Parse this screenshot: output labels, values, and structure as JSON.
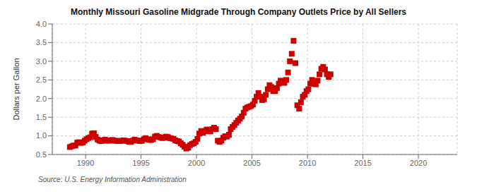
{
  "chart_data": {
    "type": "scatter",
    "title": "Monthly Missouri Gasoline Midgrade Through Company Outlets Price by All Sellers",
    "ylabel": "Dollars per Gallon",
    "annotations": [
      "Source: U.S. Energy Information Administration"
    ],
    "color": "#cc0000",
    "marker": "square",
    "grid": true,
    "xlim": [
      1987.0,
      2023.5
    ],
    "xticks": [
      1990,
      1995,
      2000,
      2005,
      2010,
      2015,
      2020
    ],
    "ylim": [
      0.5,
      4.0
    ],
    "yticks": [
      0.5,
      {
        "value": 1.0,
        "label": "1.0"
      },
      1.5,
      {
        "value": 2.0,
        "label": "2.0"
      },
      2.5,
      {
        "value": 3.0,
        "label": "3.0"
      },
      3.5,
      {
        "value": 4.0,
        "label": "4.0"
      }
    ],
    "x": [
      1988.583,
      1988.75,
      1988.917,
      1989.083,
      1989.25,
      1989.417,
      1989.583,
      1989.75,
      1989.917,
      1990.083,
      1990.25,
      1990.417,
      1990.583,
      1990.75,
      1990.917,
      1991.083,
      1991.25,
      1991.417,
      1991.583,
      1991.75,
      1991.917,
      1992.083,
      1992.25,
      1992.417,
      1992.583,
      1992.75,
      1992.917,
      1993.083,
      1993.25,
      1993.417,
      1993.583,
      1993.75,
      1993.917,
      1994.083,
      1994.25,
      1994.417,
      1994.583,
      1994.75,
      1994.917,
      1995.083,
      1995.25,
      1995.417,
      1995.583,
      1995.75,
      1995.917,
      1996.083,
      1996.25,
      1996.417,
      1996.583,
      1996.75,
      1996.917,
      1997.083,
      1997.25,
      1997.417,
      1997.583,
      1997.75,
      1997.917,
      1998.083,
      1998.25,
      1998.417,
      1998.583,
      1998.75,
      1998.917,
      1999.083,
      1999.25,
      1999.417,
      1999.583,
      1999.75,
      1999.917,
      2000.083,
      2000.25,
      2000.417,
      2000.583,
      2000.75,
      2000.917,
      2001.083,
      2001.25,
      2001.417,
      2001.583,
      2001.75,
      2001.917,
      2002.083,
      2002.25,
      2002.417,
      2002.583,
      2002.75,
      2002.917,
      2003.083,
      2003.25,
      2003.417,
      2003.583,
      2003.75,
      2003.917,
      2004.083,
      2004.25,
      2004.417,
      2004.583,
      2004.75,
      2004.917,
      2005.083,
      2005.25,
      2005.417,
      2005.583,
      2005.75,
      2005.917,
      2006.083,
      2006.25,
      2006.417,
      2006.583,
      2006.75,
      2006.917,
      2007.083,
      2007.25,
      2007.417,
      2007.583,
      2007.75,
      2007.917,
      2008.083,
      2008.25,
      2008.417,
      2008.583,
      2008.75,
      2008.917,
      2009.083,
      2009.25,
      2009.417,
      2009.583,
      2009.75,
      2009.917,
      2010.083,
      2010.25,
      2010.417,
      2010.583,
      2010.75,
      2010.917,
      2011.083,
      2011.25,
      2011.417,
      2011.583,
      2011.75,
      2011.917,
      2012.083
    ],
    "values": [
      0.7,
      0.72,
      0.74,
      0.74,
      0.82,
      0.83,
      0.81,
      0.82,
      0.87,
      0.91,
      0.94,
      0.96,
      1.06,
      1.07,
      0.97,
      0.9,
      0.87,
      0.86,
      0.88,
      0.9,
      0.87,
      0.87,
      0.88,
      0.89,
      0.87,
      0.87,
      0.86,
      0.86,
      0.87,
      0.88,
      0.87,
      0.86,
      0.84,
      0.84,
      0.87,
      0.9,
      0.88,
      0.87,
      0.86,
      0.87,
      0.91,
      0.94,
      0.91,
      0.89,
      0.89,
      0.91,
      0.98,
      1.0,
      0.97,
      0.96,
      0.94,
      0.95,
      0.98,
      0.97,
      0.94,
      0.93,
      0.92,
      0.88,
      0.86,
      0.85,
      0.8,
      0.76,
      0.71,
      0.66,
      0.68,
      0.75,
      0.78,
      0.8,
      0.84,
      0.92,
      1.06,
      1.13,
      1.08,
      1.13,
      1.17,
      1.12,
      1.12,
      1.18,
      1.22,
      1.18,
      0.87,
      0.84,
      0.87,
      0.95,
      0.99,
      0.98,
      1.03,
      1.18,
      1.24,
      1.29,
      1.35,
      1.41,
      1.46,
      1.52,
      1.62,
      1.73,
      1.76,
      1.78,
      1.8,
      1.84,
      1.94,
      2.05,
      2.15,
      2.05,
      1.96,
      1.98,
      2.1,
      2.25,
      2.36,
      2.31,
      2.2,
      2.2,
      2.28,
      2.4,
      2.48,
      2.43,
      2.42,
      2.5,
      2.7,
      3.0,
      3.2,
      3.55,
      2.95,
      1.82,
      1.73,
      1.9,
      2.05,
      2.1,
      2.2,
      2.25,
      2.4,
      2.5,
      2.4,
      2.38,
      2.48,
      2.65,
      2.8,
      2.85,
      2.78,
      2.65,
      2.58,
      2.65
    ]
  }
}
